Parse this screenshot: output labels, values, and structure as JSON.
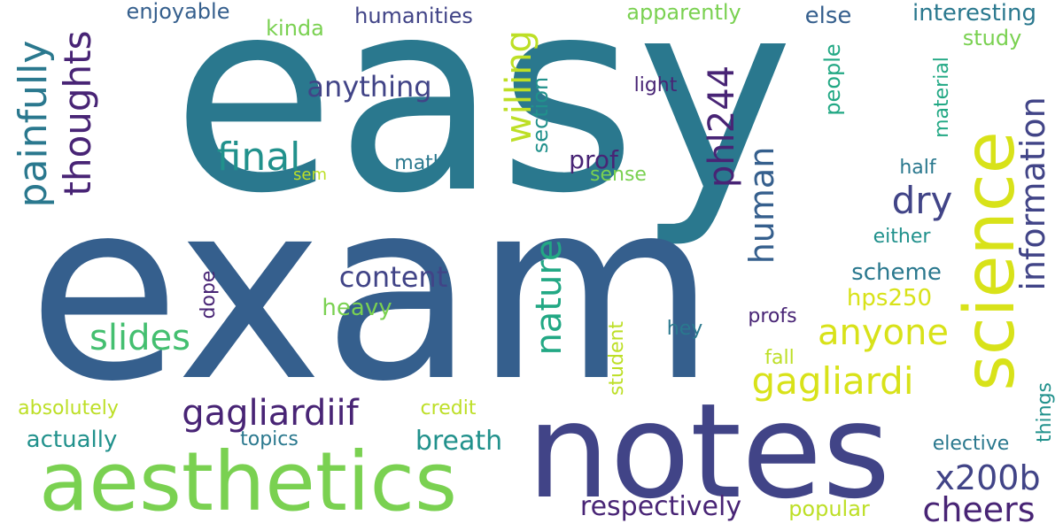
{
  "palette": {
    "background": "#ffffff",
    "dark_purple": "#482475",
    "indigo": "#414487",
    "blue": "#355f8d",
    "teal_blue": "#2a788e",
    "teal": "#21918c",
    "green_teal": "#22a884",
    "green": "#44bf70",
    "light_green": "#7ad151",
    "yellow_green": "#bddf26",
    "yellow": "#d8e219"
  },
  "words": {
    "easy": "easy",
    "exam": "exam",
    "notes": "notes",
    "aesthetics": "aesthetics",
    "science": "science",
    "painfully": "painfully",
    "thoughts": "thoughts",
    "final": "final",
    "willing": "willing",
    "phl244": "phl244",
    "information": "information",
    "human": "human",
    "dry": "dry",
    "anything": "anything",
    "nature": "nature",
    "anyone": "anyone",
    "gagliardi": "gagliardi",
    "gagliardiif": "gagliardiif",
    "slides": "slides",
    "content": "content",
    "x200b": "x200b",
    "cheers": "cheers",
    "breath": "breath",
    "respectively": "respectively",
    "enjoyable": "enjoyable",
    "kinda": "kinda",
    "humanities": "humanities",
    "apparently": "apparently",
    "else": "else",
    "interesting": "interesting",
    "study": "study",
    "section": "section",
    "light": "light",
    "people": "people",
    "material": "material",
    "math": "math",
    "prof": "prof",
    "sense": "sense",
    "sem": "sem",
    "half": "half",
    "either": "either",
    "scheme": "scheme",
    "hps250": "hps250",
    "heavy": "heavy",
    "dope": "dope",
    "student": "student",
    "hey": "hey",
    "profs": "profs",
    "fall": "fall",
    "things": "things",
    "absolutely": "absolutely",
    "credit": "credit",
    "actually": "actually",
    "topics": "topics",
    "elective": "elective",
    "popular": "popular"
  }
}
